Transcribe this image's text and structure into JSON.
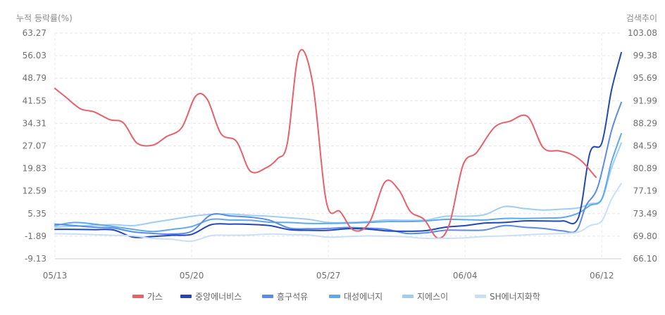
{
  "chart_data": {
    "type": "line",
    "y_left_title": "누적 등락률(%)",
    "y_right_title": "검색추이",
    "y_left_ticks": [
      "63.27",
      "56.03",
      "48.79",
      "41.55",
      "34.31",
      "27.07",
      "19.83",
      "12.59",
      "5.35",
      "-1.89",
      "-9.13"
    ],
    "y_right_ticks": [
      "103.08",
      "99.38",
      "95.69",
      "91.99",
      "88.29",
      "84.59",
      "80.89",
      "77.19",
      "73.49",
      "69.80",
      "66.10"
    ],
    "ylim": [
      -9.13,
      63.27
    ],
    "y2lim": [
      66.1,
      103.08
    ],
    "x_ticks": [
      {
        "label": "05/13",
        "day": 0
      },
      {
        "label": "05/20",
        "day": 7
      },
      {
        "label": "05/27",
        "day": 14
      },
      {
        "label": "06/04",
        "day": 21
      },
      {
        "label": "06/12",
        "day": 28
      }
    ],
    "xlim": [
      0,
      29
    ],
    "grid": true,
    "legend_position": "bottom",
    "series": [
      {
        "name": "가스",
        "color": "#e8606a",
        "x": [
          0,
          0.5,
          1.3,
          2,
          2.8,
          3.5,
          4.2,
          5,
          5.7,
          6.5,
          7.2,
          7.8,
          8.5,
          9.3,
          10,
          10.8,
          11.4,
          11.9,
          12.5,
          13.2,
          13.9,
          14.6,
          15.3,
          16.1,
          16.9,
          17.6,
          18.2,
          18.9,
          19.6,
          20.2,
          20.9,
          21.6,
          22.5,
          23.3,
          24.2,
          25,
          25.8,
          26.4,
          27,
          27.7
        ],
        "y": [
          45.5,
          43,
          39,
          38,
          35.5,
          34.5,
          28,
          27.3,
          30,
          33,
          43,
          42,
          31,
          28.5,
          19,
          20,
          23,
          28,
          57,
          47,
          9,
          6,
          0,
          2.5,
          15.5,
          13,
          6,
          3.5,
          -2.5,
          2,
          21,
          25,
          33,
          35,
          36.5,
          26.5,
          25.5,
          24.5,
          22,
          17
        ]
      },
      {
        "name": "중앙에너비스",
        "color": "#2149b6",
        "x": [
          0,
          1,
          2,
          3,
          4,
          5,
          6,
          7,
          8,
          9,
          10,
          11,
          12,
          13,
          14,
          15,
          16,
          17,
          18,
          19,
          20,
          21,
          22,
          23,
          24,
          25,
          26,
          26.8,
          27.4,
          28,
          28.5,
          29
        ],
        "y": [
          0.3,
          0.3,
          0.2,
          0.1,
          -2.2,
          -2,
          -1.6,
          -1.3,
          1.8,
          2,
          1.9,
          1.5,
          0.2,
          0,
          0,
          0.5,
          0.4,
          -0.2,
          -0.3,
          -0.1,
          1,
          1.5,
          2.3,
          2.5,
          3,
          3,
          3,
          4,
          25,
          28,
          45,
          57
        ]
      },
      {
        "name": "흥구석유",
        "color": "#5b8be8",
        "x": [
          0,
          1,
          2,
          3,
          4,
          5,
          6,
          7,
          8,
          9,
          10,
          11,
          12,
          13,
          14,
          15,
          16,
          17,
          18,
          19,
          20,
          21,
          22,
          23,
          24,
          25,
          26,
          26.7,
          27.2,
          27.8,
          28.5,
          29
        ],
        "y": [
          2,
          1.5,
          1,
          0.7,
          -0.5,
          -1,
          -1.2,
          -0.3,
          5,
          4.6,
          4.2,
          3.2,
          0.7,
          0.5,
          0.6,
          0.9,
          0.7,
          0.3,
          -1,
          -0.8,
          0,
          0,
          0.1,
          1.5,
          1,
          0.6,
          -0.2,
          0,
          8,
          14,
          32,
          41
        ]
      },
      {
        "name": "대성에너지",
        "color": "#5da9ec",
        "x": [
          0,
          1,
          2,
          3,
          4,
          5,
          6,
          7,
          8,
          9,
          10,
          11,
          12,
          13,
          14,
          15,
          16,
          17,
          18,
          19,
          20,
          21,
          22,
          23,
          24,
          25,
          26,
          26.8,
          27.4,
          28,
          28.5,
          29
        ],
        "y": [
          1.5,
          2.5,
          2,
          1.2,
          0.3,
          -0.4,
          0.3,
          1.2,
          3.5,
          3.3,
          3.2,
          2.6,
          2.5,
          2.2,
          2.2,
          2.3,
          2.5,
          2.8,
          2.8,
          3,
          3.5,
          3.4,
          3.3,
          3.8,
          3.8,
          3.9,
          4.1,
          5.5,
          8,
          10,
          22,
          31
        ]
      },
      {
        "name": "지에스이",
        "color": "#9fcdf3",
        "x": [
          0,
          1,
          2,
          3,
          4,
          5,
          6,
          7,
          8,
          9,
          10,
          11,
          12,
          13,
          14,
          15,
          16,
          17,
          18,
          19,
          20,
          21,
          22,
          23,
          24,
          25,
          26,
          26.8,
          27.4,
          28,
          28.5,
          29
        ],
        "y": [
          1,
          1.3,
          1.6,
          1.8,
          1.5,
          2.5,
          3.5,
          4.5,
          5.1,
          5.2,
          4.8,
          4.5,
          4,
          3.5,
          2.5,
          2.5,
          2.8,
          3.3,
          3.2,
          3.3,
          4.5,
          4.5,
          5,
          7.6,
          7,
          6.5,
          6.8,
          7.2,
          8.5,
          10,
          20,
          28
        ]
      },
      {
        "name": "SH에너지화학",
        "color": "#c9dff7",
        "x": [
          0,
          1,
          2,
          3,
          4,
          5,
          6,
          7,
          8,
          9,
          10,
          11,
          12,
          13,
          14,
          15,
          16,
          17,
          18,
          19,
          20,
          21,
          22,
          23,
          24,
          25,
          26,
          26.8,
          27.4,
          28,
          28.5,
          29
        ],
        "y": [
          -1.1,
          -1.2,
          -1.4,
          -1.6,
          -1.8,
          -2.6,
          -2.9,
          -3.5,
          -1.7,
          -1.6,
          -1.5,
          -1.2,
          -1.4,
          -1.5,
          -2.2,
          -2,
          -1.8,
          -1.9,
          -2.1,
          -2.6,
          -2.6,
          -2.4,
          -2,
          -1.8,
          -1.5,
          -1.2,
          -1,
          -0.6,
          1.5,
          3,
          10,
          15
        ]
      }
    ]
  }
}
